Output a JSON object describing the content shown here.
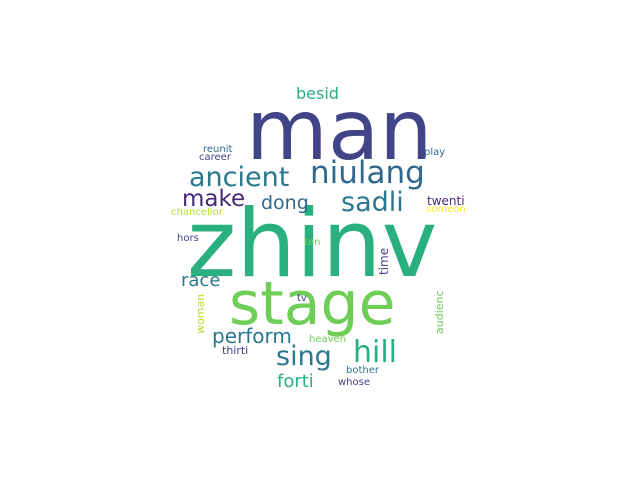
{
  "words": {
    "zhinv": "zhinv",
    "man": "man",
    "stage": "stage",
    "niulang": "niulang",
    "ancient": "ancient",
    "sadli": "sadli",
    "hill": "hill",
    "sing": "sing",
    "make": "make",
    "perform": "perform",
    "dong": "dong",
    "race": "race",
    "forti": "forti",
    "besid": "besid",
    "twenti": "twenti",
    "someon": "someon",
    "chancellor": "chancellor",
    "time": "time",
    "audienc": "audienc",
    "woman": "woman",
    "reunit": "reunit",
    "career": "career",
    "play": "play",
    "hors": "hors",
    "ten": "ten",
    "tv": "tv",
    "heaven": "heaven",
    "thirti": "thirti",
    "bother": "bother",
    "whose": "whose"
  },
  "colors": {
    "dark_indigo": "#414487",
    "deep_purple": "#482878",
    "teal": "#2a788e",
    "blue_teal": "#31688e",
    "sea_green": "#1f9e89",
    "green": "#2ab07f",
    "light_green": "#6ece58",
    "lime": "#b5de2b",
    "yellow": "#fde725"
  }
}
